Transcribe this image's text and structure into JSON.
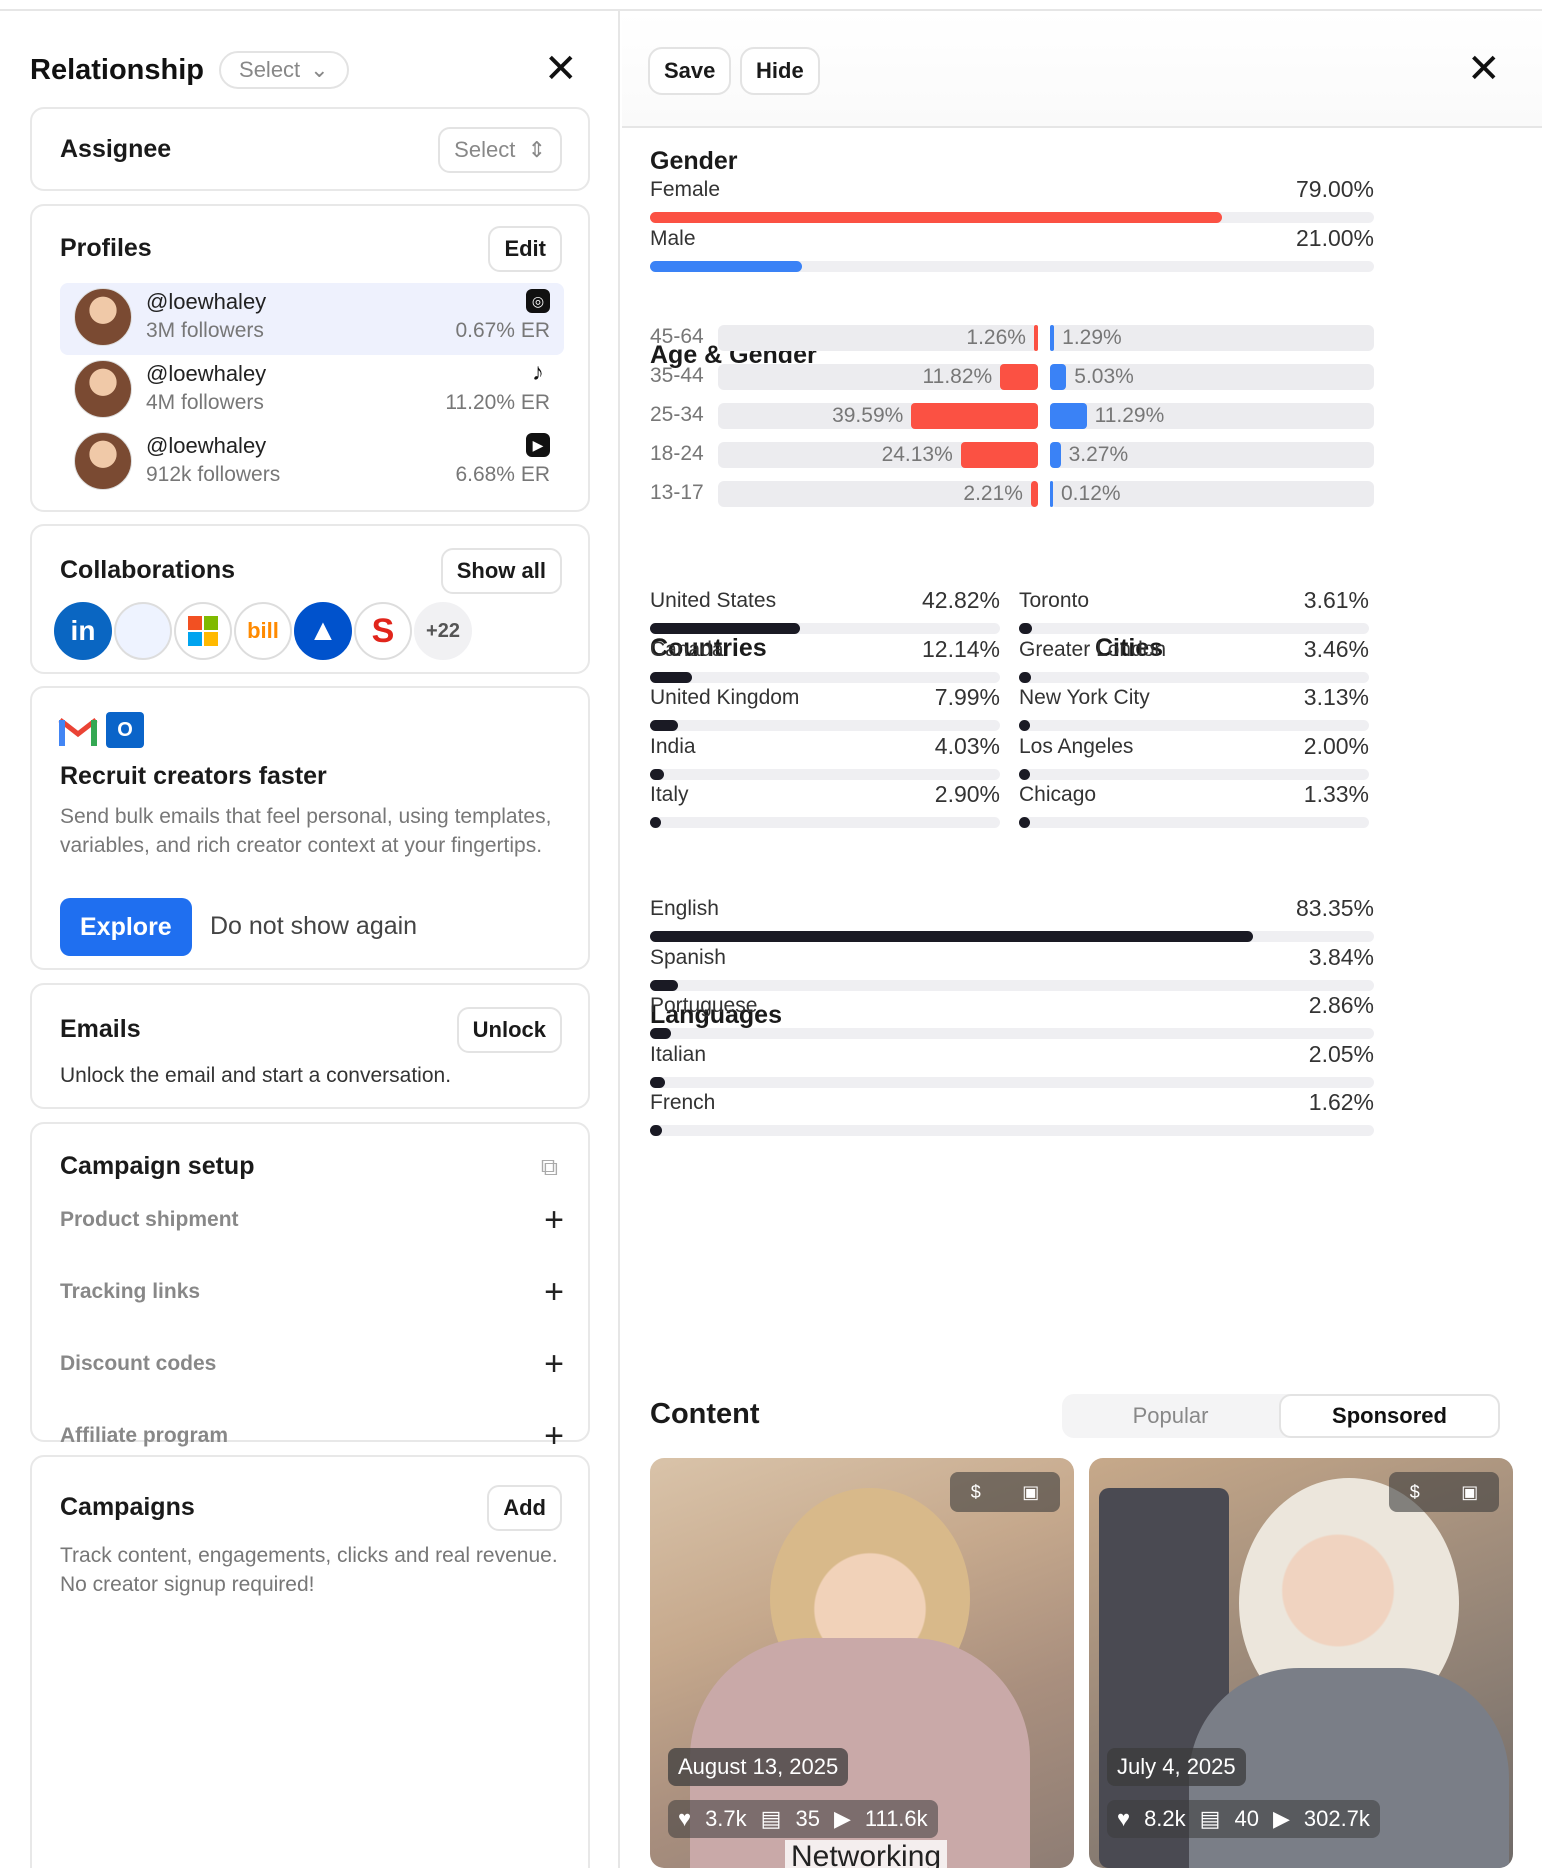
{
  "left": {
    "title": "Relationship",
    "status_select": "Select",
    "assignee": {
      "label": "Assignee",
      "select": "Select"
    },
    "profiles": {
      "title": "Profiles",
      "edit": "Edit",
      "items": [
        {
          "handle": "@loewhaley",
          "followers": "3M followers",
          "er": "0.67% ER",
          "platform": "instagram-icon"
        },
        {
          "handle": "@loewhaley",
          "followers": "4M followers",
          "er": "11.20% ER",
          "platform": "tiktok-icon"
        },
        {
          "handle": "@loewhaley",
          "followers": "912k followers",
          "er": "6.68% ER",
          "platform": "youtube-icon"
        }
      ]
    },
    "collabs": {
      "title": "Collaborations",
      "show_all": "Show all",
      "more": "+22",
      "logos": [
        "linkedin",
        "blank",
        "microsoft",
        "bill",
        "atlassian",
        "snapdragon"
      ]
    },
    "promo": {
      "title": "Recruit creators faster",
      "desc": "Send bulk emails that feel personal, using templates, variables, and rich creator context at your fingertips.",
      "explore": "Explore",
      "dismiss": "Do not show again"
    },
    "emails": {
      "title": "Emails",
      "unlock": "Unlock",
      "desc": "Unlock the email and start a conversation."
    },
    "campaign_setup": {
      "title": "Campaign setup",
      "items": [
        "Product shipment",
        "Tracking links",
        "Discount codes",
        "Affiliate program"
      ]
    },
    "campaigns": {
      "title": "Campaigns",
      "add": "Add",
      "desc": "Track content, engagements, clicks and real revenue. No creator signup required!"
    }
  },
  "right": {
    "save": "Save",
    "hide": "Hide",
    "gender": {
      "title": "Gender",
      "items": [
        {
          "label": "Female",
          "pct": "79.00%",
          "value": 79.0,
          "color": "#fb5143"
        },
        {
          "label": "Male",
          "pct": "21.00%",
          "value": 21.0,
          "color": "#3a82f6"
        }
      ]
    },
    "age": {
      "title": "Age & Gender",
      "rows": [
        {
          "range": "45-64",
          "f": "1.26%",
          "fv": 1.26,
          "m": "1.29%",
          "mv": 1.29
        },
        {
          "range": "35-44",
          "f": "11.82%",
          "fv": 11.82,
          "m": "5.03%",
          "mv": 5.03
        },
        {
          "range": "25-34",
          "f": "39.59%",
          "fv": 39.59,
          "m": "11.29%",
          "mv": 11.29
        },
        {
          "range": "18-24",
          "f": "24.13%",
          "fv": 24.13,
          "m": "3.27%",
          "mv": 3.27
        },
        {
          "range": "13-17",
          "f": "2.21%",
          "fv": 2.21,
          "m": "0.12%",
          "mv": 0.12
        }
      ]
    },
    "countries": {
      "title": "Countries",
      "items": [
        {
          "label": "United States",
          "pct": "42.82%",
          "value": 42.82
        },
        {
          "label": "Canada",
          "pct": "12.14%",
          "value": 12.14
        },
        {
          "label": "United Kingdom",
          "pct": "7.99%",
          "value": 7.99
        },
        {
          "label": "India",
          "pct": "4.03%",
          "value": 4.03
        },
        {
          "label": "Italy",
          "pct": "2.90%",
          "value": 2.9
        }
      ]
    },
    "cities": {
      "title": "Cities",
      "items": [
        {
          "label": "Toronto",
          "pct": "3.61%",
          "value": 3.61
        },
        {
          "label": "Greater London",
          "pct": "3.46%",
          "value": 3.46
        },
        {
          "label": "New York City",
          "pct": "3.13%",
          "value": 3.13
        },
        {
          "label": "Los Angeles",
          "pct": "2.00%",
          "value": 2.0
        },
        {
          "label": "Chicago",
          "pct": "1.33%",
          "value": 1.33
        }
      ]
    },
    "languages": {
      "title": "Languages",
      "items": [
        {
          "label": "English",
          "pct": "83.35%",
          "value": 83.35
        },
        {
          "label": "Spanish",
          "pct": "3.84%",
          "value": 3.84
        },
        {
          "label": "Portuguese",
          "pct": "2.86%",
          "value": 2.86
        },
        {
          "label": "Italian",
          "pct": "2.05%",
          "value": 2.05
        },
        {
          "label": "French",
          "pct": "1.62%",
          "value": 1.62
        }
      ]
    },
    "content": {
      "title": "Content",
      "tabs": [
        "Popular",
        "Sponsored"
      ],
      "active_tab": "Sponsored",
      "videos": [
        {
          "date": "August 13, 2025",
          "likes": "3.7k",
          "comments": "35",
          "views": "111.6k",
          "caption": "Networking"
        },
        {
          "date": "July 4, 2025",
          "likes": "8.2k",
          "comments": "40",
          "views": "302.7k",
          "caption": ""
        }
      ]
    }
  }
}
